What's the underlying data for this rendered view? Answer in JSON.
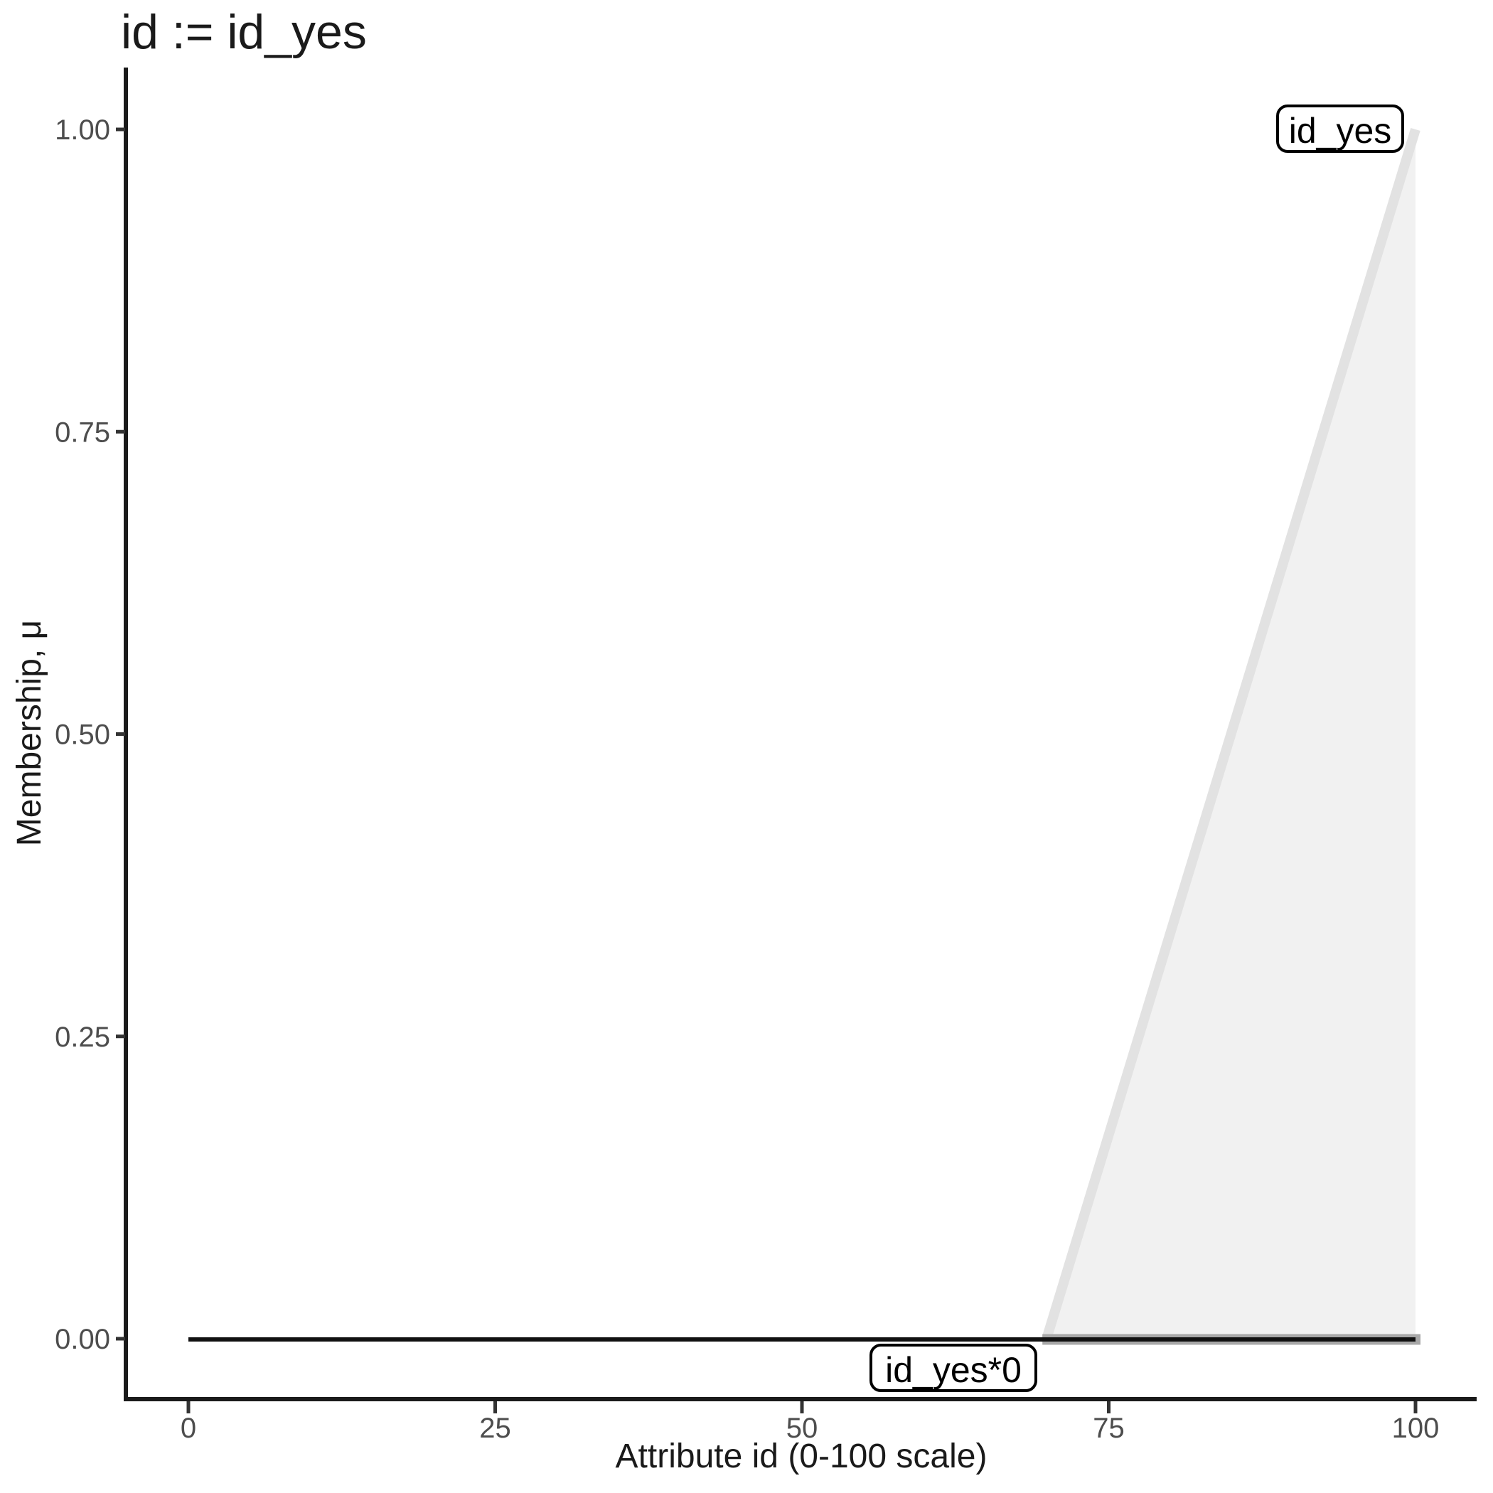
{
  "title": "id := id_yes",
  "chart_data": {
    "type": "area",
    "title": "id := id_yes",
    "xlabel": "Attribute id (0-100 scale)",
    "ylabel": "Membership, μ",
    "xlim": [
      0,
      100
    ],
    "ylim": [
      0,
      1
    ],
    "x_ticks": [
      {
        "value": 0,
        "label": "0"
      },
      {
        "value": 25,
        "label": "25"
      },
      {
        "value": 50,
        "label": "50"
      },
      {
        "value": 75,
        "label": "75"
      },
      {
        "value": 100,
        "label": "100"
      }
    ],
    "y_ticks": [
      {
        "value": 0.0,
        "label": "0.00"
      },
      {
        "value": 0.25,
        "label": "0.25"
      },
      {
        "value": 0.5,
        "label": "0.50"
      },
      {
        "value": 0.75,
        "label": "0.75"
      },
      {
        "value": 1.0,
        "label": "1.00"
      }
    ],
    "grid": false,
    "legend": "none",
    "series": [
      {
        "name": "id_yes",
        "kind": "area",
        "label": "id_yes",
        "points": [
          [
            70,
            0
          ],
          [
            100,
            1
          ]
        ],
        "fill": "#f1f1f1",
        "stroke": "#e2e2e2",
        "base_stroke": "#a8a8a8"
      },
      {
        "name": "id_yes*0",
        "kind": "line",
        "label": "id_yes*0",
        "points": [
          [
            0,
            0
          ],
          [
            100,
            0
          ]
        ],
        "stroke": "#111111"
      }
    ]
  },
  "colors": {
    "background": "#ffffff",
    "axis_line": "#1a1a1a",
    "tick_mark": "#333333",
    "tick_label": "#4d4d4d",
    "annotation_box_fill": "#ffffff",
    "annotation_box_border": "#000000"
  }
}
